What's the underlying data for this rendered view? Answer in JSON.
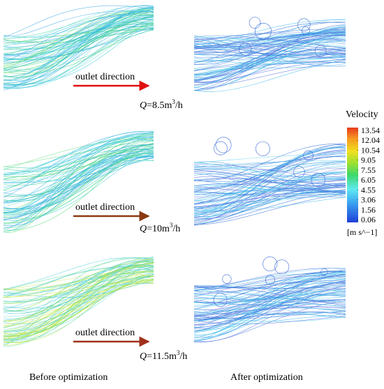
{
  "panels": [
    {
      "arrow_label": "outlet direction",
      "flow": {
        "symbol": "Q",
        "value": "=8.5m",
        "sup": "3",
        "unit": "/h"
      }
    },
    {
      "arrow_label": "outlet direction",
      "flow": {
        "symbol": "Q",
        "value": "=10m",
        "sup": "3",
        "unit": "/h"
      }
    },
    {
      "arrow_label": "outlet direction",
      "flow": {
        "symbol": "Q",
        "value": "=11.5m",
        "sup": "3",
        "unit": "/h"
      }
    }
  ],
  "legend": {
    "title": "Velocity",
    "ticks": [
      13.54,
      12.04,
      10.54,
      9.05,
      7.55,
      6.05,
      4.55,
      3.06,
      1.56,
      0.06
    ],
    "unit": "[m s^−1]"
  },
  "captions": {
    "before": "Before optimization",
    "after": "After optimization"
  }
}
